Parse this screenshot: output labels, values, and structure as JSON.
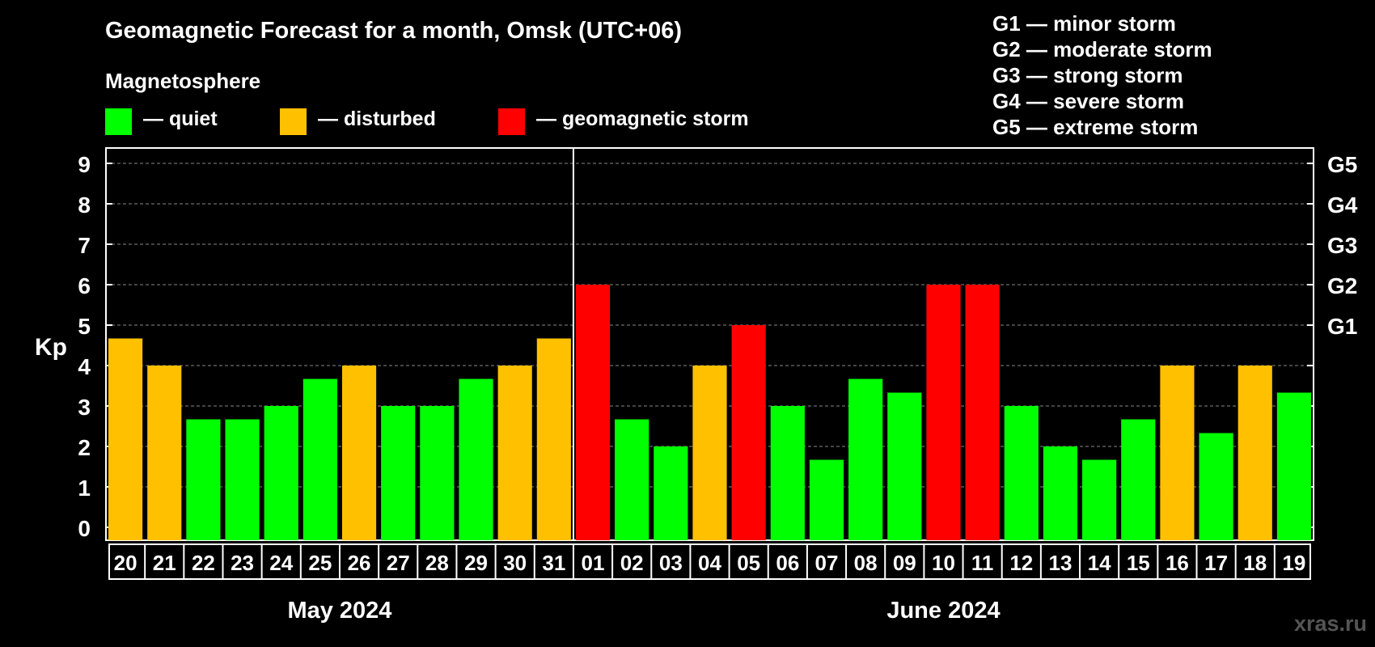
{
  "title": "Geomagnetic Forecast for a month, Omsk (UTC+06)",
  "legend": {
    "heading": "Magnetosphere",
    "items": [
      {
        "label": "— quiet",
        "color": "#00ff00"
      },
      {
        "label": "— disturbed",
        "color": "#ffc000"
      },
      {
        "label": "— geomagnetic storm",
        "color": "#ff0000"
      }
    ]
  },
  "storm_scale": [
    "G1 — minor storm",
    "G2 — moderate storm",
    "G3 — strong storm",
    "G4 — severe storm",
    "G5 — extreme storm"
  ],
  "watermark": "xras.ru",
  "chart_data": {
    "type": "bar",
    "ylabel": "Kp",
    "ylim": [
      0,
      9
    ],
    "yticks": [
      "0",
      "1",
      "2",
      "3",
      "4",
      "5",
      "6",
      "7",
      "8",
      "9"
    ],
    "right_axis": [
      {
        "value": 5,
        "label": "G1"
      },
      {
        "value": 6,
        "label": "G2"
      },
      {
        "value": 7,
        "label": "G3"
      },
      {
        "value": 8,
        "label": "G4"
      },
      {
        "value": 9,
        "label": "G5"
      }
    ],
    "grid": "horizontal dashed",
    "months": [
      {
        "label": "May 2024",
        "days": 12
      },
      {
        "label": "June 2024",
        "days": 19
      }
    ],
    "categories": [
      "20",
      "21",
      "22",
      "23",
      "24",
      "25",
      "26",
      "27",
      "28",
      "29",
      "30",
      "31",
      "01",
      "02",
      "03",
      "04",
      "05",
      "06",
      "07",
      "08",
      "09",
      "10",
      "11",
      "12",
      "13",
      "14",
      "15",
      "16",
      "17",
      "18",
      "19"
    ],
    "values": [
      4.67,
      4,
      2.67,
      2.67,
      3,
      3.67,
      4,
      3,
      3,
      3.67,
      4,
      4.67,
      6,
      2.67,
      2,
      4,
      5,
      3,
      1.67,
      3.67,
      3.33,
      6,
      6,
      3,
      2,
      1.67,
      2.67,
      4,
      2.33,
      4,
      3.33
    ],
    "levels": [
      "disturbed",
      "disturbed",
      "quiet",
      "quiet",
      "quiet",
      "quiet",
      "disturbed",
      "quiet",
      "quiet",
      "quiet",
      "disturbed",
      "disturbed",
      "storm",
      "quiet",
      "quiet",
      "disturbed",
      "storm",
      "quiet",
      "quiet",
      "quiet",
      "quiet",
      "storm",
      "storm",
      "quiet",
      "quiet",
      "quiet",
      "quiet",
      "disturbed",
      "quiet",
      "disturbed",
      "quiet"
    ],
    "colors": {
      "quiet": "#00ff00",
      "disturbed": "#ffc000",
      "storm": "#ff0000"
    }
  }
}
